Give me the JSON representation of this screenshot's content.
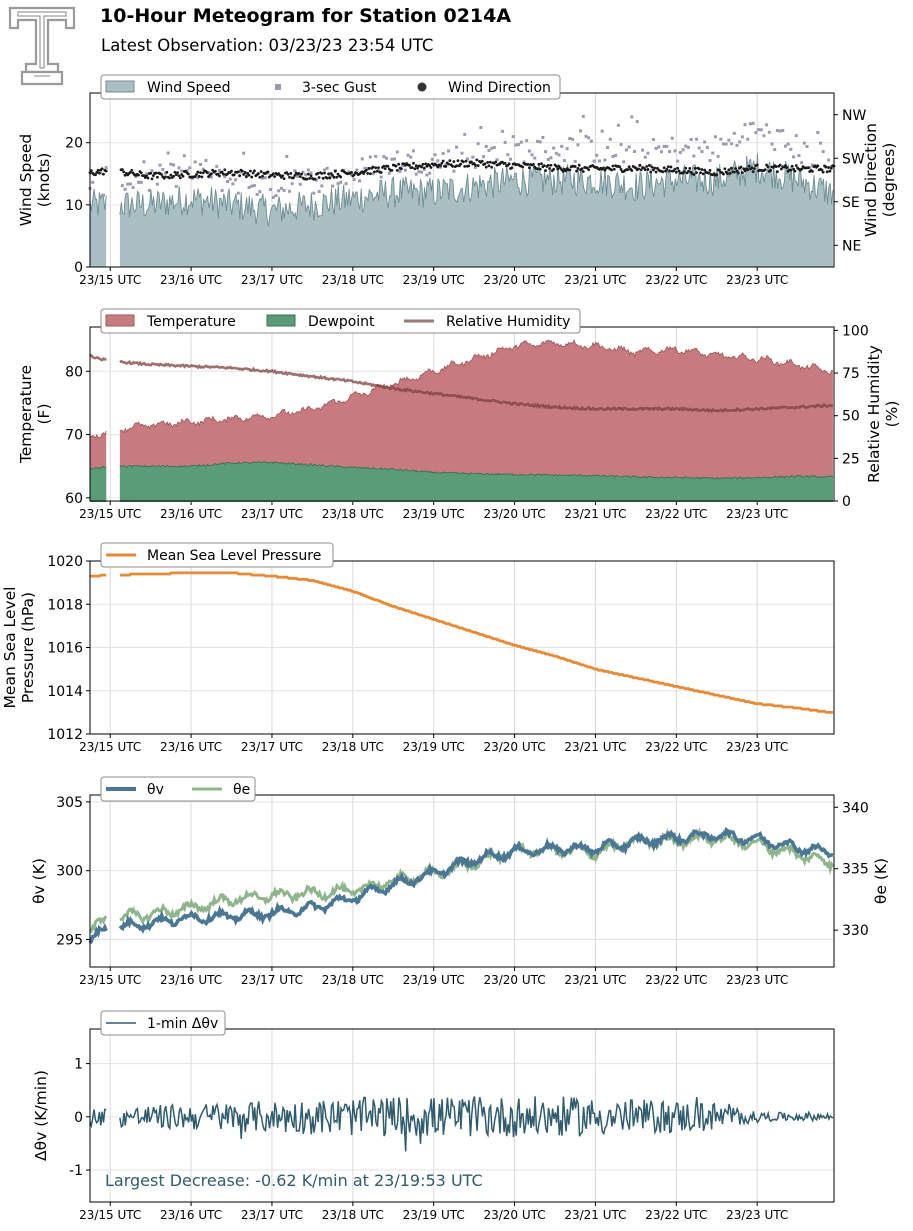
{
  "header": {
    "title": "10-Hour Meteogram for Station 0214A",
    "subtitle": "Latest Observation: 03/23/23 23:54 UTC"
  },
  "colors": {
    "wind_fill": "#a9bfc4",
    "wind_edge": "#6f8f95",
    "gust": "#9d99b3",
    "direction": "#1a1a1a",
    "temperature": "#c77b7e",
    "temperature_edge": "#a35a5e",
    "dewpoint": "#5a9c78",
    "dewpoint_edge": "#3f6f55",
    "rh": "#7d3f3f",
    "pressure": "#e68a35",
    "theta_v": "#4a7794",
    "theta_e": "#8fb58c",
    "dtheta": "#2f5c6e",
    "annotation": "#2f5c6e"
  },
  "chart_data": [
    {
      "id": "wind",
      "type": "area",
      "ylabel": "Wind Speed\n(knots)",
      "ylabel2": "Wind Direction\n(degrees)",
      "ylim": [
        0,
        28
      ],
      "y_ticks": [
        0,
        10,
        20
      ],
      "y2_ticks": [
        "NE",
        "SE",
        "SW",
        "NW"
      ],
      "y2_tick_values": [
        45,
        135,
        225,
        315
      ],
      "y2lim": [
        0,
        360
      ],
      "x_tick_labels": [
        "23/15 UTC",
        "23/16 UTC",
        "23/17 UTC",
        "23/18 UTC",
        "23/19 UTC",
        "23/20 UTC",
        "23/21 UTC",
        "23/22 UTC",
        "23/23 UTC"
      ],
      "legend": [
        "Wind Speed",
        "3-sec Gust",
        "Wind Direction"
      ],
      "legend_position": "top-left",
      "grid": true,
      "series": [
        {
          "name": "Wind Speed",
          "x_hours": [
            14.75,
            15,
            15.5,
            16,
            16.5,
            17,
            17.5,
            18,
            18.5,
            19,
            19.5,
            20,
            20.5,
            21,
            21.5,
            22,
            22.5,
            23,
            23.5,
            23.9
          ],
          "values": [
            10,
            10,
            10,
            11,
            10,
            9,
            10,
            11,
            12,
            12,
            13,
            14,
            14,
            14,
            13,
            14,
            14,
            16,
            14,
            12
          ]
        },
        {
          "name": "3-sec Gust",
          "x_hours": [
            14.75,
            15,
            15.5,
            16,
            16.5,
            17,
            17.5,
            18,
            18.5,
            19,
            19.5,
            20,
            20.5,
            21,
            21.5,
            22,
            22.5,
            23,
            23.5,
            23.9
          ],
          "values": [
            13,
            14,
            14,
            15,
            14,
            13,
            14,
            15,
            17,
            17,
            18,
            19,
            19,
            19,
            18,
            19,
            19,
            22,
            19,
            16
          ]
        },
        {
          "name": "Wind Direction",
          "x_hours": [
            14.75,
            15,
            15.5,
            16,
            16.5,
            17,
            17.5,
            18,
            18.5,
            19,
            19.5,
            20,
            20.5,
            21,
            21.5,
            22,
            22.5,
            23,
            23.5,
            23.9
          ],
          "values": [
            195,
            200,
            188,
            192,
            196,
            190,
            188,
            195,
            205,
            212,
            215,
            210,
            205,
            203,
            205,
            200,
            196,
            205,
            203,
            203
          ]
        }
      ]
    },
    {
      "id": "thermo",
      "type": "area",
      "ylabel": "Temperature\n(F)",
      "ylabel2": "Relative Humidity\n(%)",
      "ylim": [
        59.5,
        87
      ],
      "y_ticks": [
        60,
        70,
        80
      ],
      "y2lim": [
        0,
        102
      ],
      "y2_ticks": [
        0,
        25,
        50,
        75,
        100
      ],
      "x_tick_labels": [
        "23/15 UTC",
        "23/16 UTC",
        "23/17 UTC",
        "23/18 UTC",
        "23/19 UTC",
        "23/20 UTC",
        "23/21 UTC",
        "23/22 UTC",
        "23/23 UTC"
      ],
      "legend": [
        "Temperature",
        "Dewpoint",
        "Relative Humidity"
      ],
      "legend_position": "top-left",
      "grid": true,
      "series": [
        {
          "name": "Temperature",
          "x_hours": [
            14.75,
            15,
            15.5,
            16,
            16.5,
            17,
            17.5,
            18,
            18.5,
            19,
            19.5,
            20,
            20.5,
            21,
            21.5,
            22,
            22.5,
            23,
            23.5,
            23.9
          ],
          "values": [
            69.5,
            70.8,
            71.5,
            72,
            72.5,
            73,
            74,
            76,
            78,
            80,
            82,
            84,
            84.5,
            84,
            83,
            83.5,
            82.5,
            82,
            81,
            80
          ]
        },
        {
          "name": "Dewpoint",
          "x_hours": [
            14.75,
            15,
            15.5,
            16,
            16.5,
            17,
            17.5,
            18,
            18.5,
            19,
            19.5,
            20,
            20.5,
            21,
            21.5,
            22,
            22.5,
            23,
            23.5,
            23.9
          ],
          "values": [
            64.5,
            65,
            65,
            65,
            65.5,
            65.6,
            65.2,
            64.8,
            64.5,
            64,
            63.8,
            63.7,
            63.6,
            63.5,
            63.3,
            63.2,
            63.1,
            63.2,
            63.4,
            63.3
          ]
        },
        {
          "name": "Relative Humidity",
          "x_hours": [
            14.75,
            15,
            15.5,
            16,
            16.5,
            17,
            17.5,
            18,
            18.5,
            19,
            19.5,
            20,
            20.5,
            21,
            21.5,
            22,
            22.5,
            23,
            23.5,
            23.9
          ],
          "values": [
            85,
            82,
            80,
            79,
            78,
            76,
            73,
            70,
            66,
            63,
            60,
            57,
            55,
            54,
            54,
            54,
            53,
            54,
            55,
            56
          ]
        }
      ]
    },
    {
      "id": "pressure",
      "type": "line",
      "ylabel": "Mean Sea Level\nPressure (hPa)",
      "ylim": [
        1012,
        1020
      ],
      "y_ticks": [
        1012,
        1014,
        1016,
        1018,
        1020
      ],
      "x_tick_labels": [
        "23/15 UTC",
        "23/16 UTC",
        "23/17 UTC",
        "23/18 UTC",
        "23/19 UTC",
        "23/20 UTC",
        "23/21 UTC",
        "23/22 UTC",
        "23/23 UTC"
      ],
      "legend": [
        "Mean Sea Level Pressure"
      ],
      "legend_position": "top-left",
      "grid": true,
      "series": [
        {
          "name": "Mean Sea Level Pressure",
          "x_hours": [
            14.75,
            15,
            15.5,
            16,
            16.5,
            17,
            17.5,
            18,
            18.5,
            19,
            19.5,
            20,
            20.5,
            21,
            21.5,
            22,
            22.5,
            23,
            23.5,
            23.9
          ],
          "values": [
            1019.3,
            1019.35,
            1019.4,
            1019.45,
            1019.45,
            1019.3,
            1019.1,
            1018.6,
            1017.9,
            1017.3,
            1016.7,
            1016.1,
            1015.6,
            1015.0,
            1014.6,
            1014.2,
            1013.8,
            1013.4,
            1013.2,
            1013.0
          ]
        }
      ]
    },
    {
      "id": "theta",
      "type": "line",
      "ylabel": "θv (K)",
      "ylabel2": "θe (K)",
      "ylim": [
        293,
        305.5
      ],
      "y_ticks": [
        295,
        300,
        305
      ],
      "y2lim": [
        327,
        341
      ],
      "y2_ticks": [
        330,
        335,
        340
      ],
      "x_tick_labels": [
        "23/15 UTC",
        "23/16 UTC",
        "23/17 UTC",
        "23/18 UTC",
        "23/19 UTC",
        "23/20 UTC",
        "23/21 UTC",
        "23/22 UTC",
        "23/23 UTC"
      ],
      "legend": [
        "θv",
        "θe"
      ],
      "legend_position": "top-left",
      "grid": true,
      "series": [
        {
          "name": "θv",
          "x_hours": [
            14.75,
            15,
            15.5,
            16,
            16.5,
            17,
            17.5,
            18,
            18.5,
            19,
            19.5,
            20,
            20.5,
            21,
            21.5,
            22,
            22.5,
            23,
            23.5,
            23.9
          ],
          "values": [
            295,
            295.8,
            296.2,
            296.6,
            296.7,
            296.9,
            297.3,
            298,
            299,
            299.8,
            300.8,
            301.4,
            301.6,
            301.6,
            302.1,
            302.4,
            302.6,
            302.3,
            301.7,
            301.3
          ]
        },
        {
          "name": "θe",
          "x_hours": [
            14.75,
            15,
            15.5,
            16,
            16.5,
            17,
            17.5,
            18,
            18.5,
            19,
            19.5,
            20,
            20.5,
            21,
            21.5,
            22,
            22.5,
            23,
            23.5,
            23.9
          ],
          "values": [
            330,
            331,
            331.3,
            331.8,
            332.5,
            332.8,
            333,
            333.2,
            334,
            334.6,
            335.5,
            336.5,
            336.5,
            336.3,
            337.3,
            337.3,
            337.5,
            337,
            336.2,
            335.5
          ]
        }
      ]
    },
    {
      "id": "dtheta",
      "type": "line",
      "ylabel": "Δθv (K/min)",
      "ylim": [
        -1.6,
        1.65
      ],
      "y_ticks": [
        -1,
        0,
        1
      ],
      "x_tick_labels": [
        "23/15 UTC",
        "23/16 UTC",
        "23/17 UTC",
        "23/18 UTC",
        "23/19 UTC",
        "23/20 UTC",
        "23/21 UTC",
        "23/22 UTC",
        "23/23 UTC"
      ],
      "legend": [
        "1-min Δθv"
      ],
      "legend_position": "top-left",
      "grid": true,
      "annotation": "Largest Decrease: -0.62 K/min at 23/19:53 UTC",
      "series": [
        {
          "name": "1-min Δθv",
          "amplitude_envelope": {
            "x_hours": [
              14.75,
              15.5,
              16.5,
              17.5,
              18.5,
              19.5,
              20.5,
              21.5,
              22.5,
              23,
              23.9
            ],
            "values": [
              0.15,
              0.2,
              0.25,
              0.3,
              0.35,
              0.35,
              0.35,
              0.3,
              0.25,
              0.08,
              0.06
            ]
          }
        }
      ]
    }
  ]
}
